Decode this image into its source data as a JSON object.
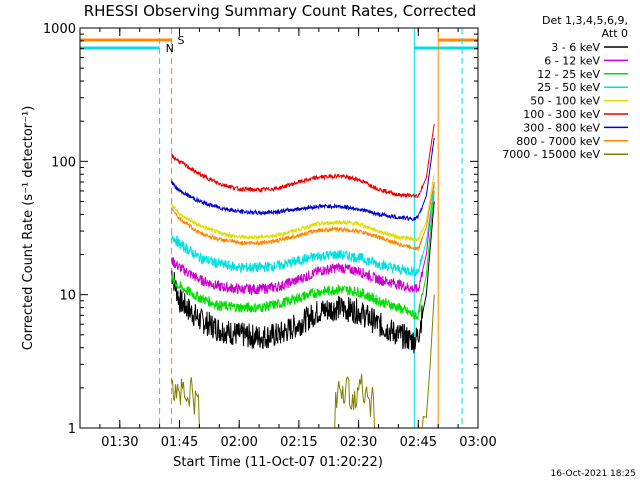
{
  "chart_data": {
    "type": "line",
    "title": "RHESSI Observing Summary Count Rates, Corrected",
    "xlabel": "Start Time (11-Oct-07 01:20:22)",
    "ylabel": "Corrected Count Rate (s⁻¹ detector⁻¹)",
    "y_scale": "log",
    "ylim": [
      1,
      1000
    ],
    "xlim": [
      "01:20",
      "03:00"
    ],
    "x_ticks": [
      "01:30",
      "01:45",
      "02:00",
      "02:15",
      "02:30",
      "02:45",
      "03:00"
    ],
    "y_ticks": [
      "1",
      "10",
      "100",
      "1000"
    ],
    "legend_header": [
      "Det 1,3,4,5,6,9,",
      "Att 0"
    ],
    "legend_position": "right",
    "footer_timestamp": "16-Oct-2021 18:25",
    "markers": [
      {
        "label": "S",
        "time": "01:43"
      },
      {
        "label": "N",
        "time": "01:40"
      }
    ],
    "series": [
      {
        "name": "3 - 6 keV",
        "color": "#000000",
        "x": [
          "01:43",
          "01:45",
          "01:50",
          "01:55",
          "02:00",
          "02:05",
          "02:10",
          "02:15",
          "02:20",
          "02:25",
          "02:30",
          "02:35",
          "02:40",
          "02:44",
          "02:45",
          "02:47",
          "02:49"
        ],
        "y": [
          15,
          9,
          6.5,
          5.5,
          5,
          4.8,
          5,
          6,
          7.5,
          8,
          7.5,
          6,
          5,
          4.5,
          5,
          10,
          50
        ]
      },
      {
        "name": "6 - 12 keV",
        "color": "#cc00cc",
        "x": [
          "01:43",
          "01:45",
          "01:50",
          "01:55",
          "02:00",
          "02:05",
          "02:10",
          "02:15",
          "02:20",
          "02:25",
          "02:30",
          "02:35",
          "02:40",
          "02:44",
          "02:45",
          "02:47",
          "02:49"
        ],
        "y": [
          18,
          16,
          13,
          11.5,
          11,
          11,
          11.5,
          13,
          15,
          16,
          15,
          13,
          12,
          11,
          11,
          20,
          70
        ]
      },
      {
        "name": "12 - 25 keV",
        "color": "#00dd00",
        "x": [
          "01:43",
          "01:45",
          "01:50",
          "01:55",
          "02:00",
          "02:05",
          "02:10",
          "02:15",
          "02:20",
          "02:25",
          "02:30",
          "02:35",
          "02:40",
          "02:44",
          "02:45",
          "02:47",
          "02:49"
        ],
        "y": [
          13,
          11.5,
          9.5,
          8.3,
          8,
          8,
          8.5,
          9.5,
          10.5,
          11,
          10.5,
          9,
          8,
          7,
          7,
          14,
          60
        ]
      },
      {
        "name": "25 - 50 keV",
        "color": "#00e0e0",
        "x": [
          "01:43",
          "01:45",
          "01:50",
          "01:55",
          "02:00",
          "02:05",
          "02:10",
          "02:15",
          "02:20",
          "02:25",
          "02:30",
          "02:35",
          "02:40",
          "02:44",
          "02:45",
          "02:47",
          "02:49"
        ],
        "y": [
          28,
          24,
          19,
          17,
          16,
          16,
          16.5,
          18,
          19.5,
          20,
          19,
          17,
          15.5,
          15,
          15,
          25,
          65
        ]
      },
      {
        "name": "50 - 100 keV",
        "color": "#dddd00",
        "x": [
          "01:43",
          "01:45",
          "01:50",
          "01:55",
          "02:00",
          "02:05",
          "02:10",
          "02:15",
          "02:20",
          "02:25",
          "02:30",
          "02:35",
          "02:40",
          "02:44",
          "02:45",
          "02:47",
          "02:49"
        ],
        "y": [
          48,
          40,
          33,
          29,
          27,
          27,
          28,
          31,
          34,
          35,
          34,
          30,
          27,
          26,
          26,
          35,
          80
        ]
      },
      {
        "name": "100 - 300 keV",
        "color": "#ee0000",
        "x": [
          "01:43",
          "01:45",
          "01:50",
          "01:55",
          "02:00",
          "02:05",
          "02:10",
          "02:15",
          "02:20",
          "02:25",
          "02:30",
          "02:35",
          "02:40",
          "02:44",
          "02:45",
          "02:47",
          "02:49"
        ],
        "y": [
          110,
          100,
          80,
          68,
          62,
          61,
          63,
          70,
          76,
          78,
          73,
          62,
          56,
          55,
          55,
          75,
          190
        ]
      },
      {
        "name": "300 - 800 keV",
        "color": "#0000cc",
        "x": [
          "01:43",
          "01:45",
          "01:50",
          "01:55",
          "02:00",
          "02:05",
          "02:10",
          "02:15",
          "02:20",
          "02:25",
          "02:30",
          "02:35",
          "02:40",
          "02:44",
          "02:45",
          "02:47",
          "02:49"
        ],
        "y": [
          70,
          60,
          50,
          45,
          42,
          41,
          42,
          44,
          46,
          46,
          44,
          40,
          38,
          37,
          38,
          55,
          150
        ]
      },
      {
        "name": "800 - 7000 keV",
        "color": "#ff8800",
        "x": [
          "01:43",
          "01:45",
          "01:50",
          "01:55",
          "02:00",
          "02:05",
          "02:10",
          "02:15",
          "02:20",
          "02:25",
          "02:30",
          "02:35",
          "02:40",
          "02:44",
          "02:45",
          "02:47",
          "02:49"
        ],
        "y": [
          45,
          37,
          29,
          26,
          24.5,
          24.5,
          25.5,
          28,
          30.5,
          31,
          30,
          27,
          24,
          22.5,
          22,
          32,
          70
        ]
      },
      {
        "name": "7000 - 15000 keV",
        "color": "#808000",
        "x": [
          "01:43",
          "01:44",
          "01:45",
          "01:47",
          "01:48",
          "01:49",
          "02:25",
          "02:26",
          "02:28",
          "02:30",
          "02:32",
          "02:33",
          "02:47",
          "02:48",
          "02:49"
        ],
        "y": [
          2.8,
          1.9,
          2.1,
          1.6,
          2.0,
          1.5,
          1.9,
          2.0,
          1.8,
          2.0,
          1.9,
          1.7,
          1.2,
          3,
          10
        ]
      }
    ]
  }
}
